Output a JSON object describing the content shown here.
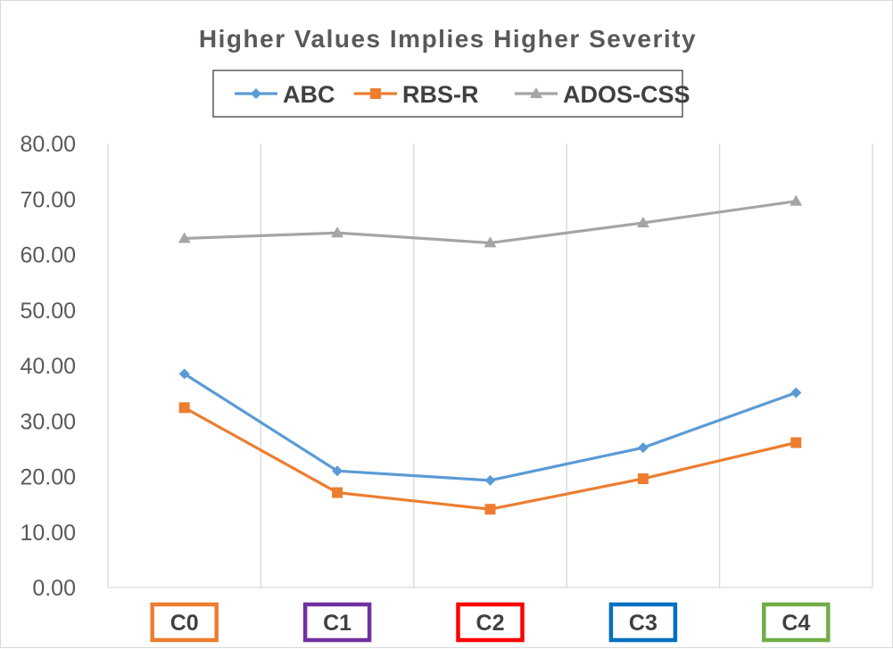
{
  "chart_data": {
    "type": "line",
    "title": "Higher Values  Implies Higher Severity",
    "categories": [
      "C0",
      "C1",
      "C2",
      "C3",
      "C4"
    ],
    "category_box_colors": [
      "#ED7D31",
      "#7030A0",
      "#FF0000",
      "#0070C0",
      "#70AD47"
    ],
    "series": [
      {
        "name": "ABC",
        "values": [
          38.5,
          21.0,
          19.3,
          25.2,
          35.1
        ],
        "color": "#5B9BD5",
        "marker": "diamond"
      },
      {
        "name": "RBS-R",
        "values": [
          32.4,
          17.1,
          14.1,
          19.6,
          26.1
        ],
        "color": "#ED7D31",
        "marker": "square"
      },
      {
        "name": "ADOS-CSS",
        "values": [
          62.9,
          63.9,
          62.1,
          65.7,
          69.6
        ],
        "color": "#A5A5A5",
        "marker": "triangle"
      }
    ],
    "ylim": [
      0,
      80
    ],
    "yticks": [
      "0.00",
      "10.00",
      "20.00",
      "30.00",
      "40.00",
      "50.00",
      "60.00",
      "70.00",
      "80.00"
    ],
    "xlabel": "",
    "ylabel": "",
    "grid": "vertical",
    "legend_position": "top"
  }
}
